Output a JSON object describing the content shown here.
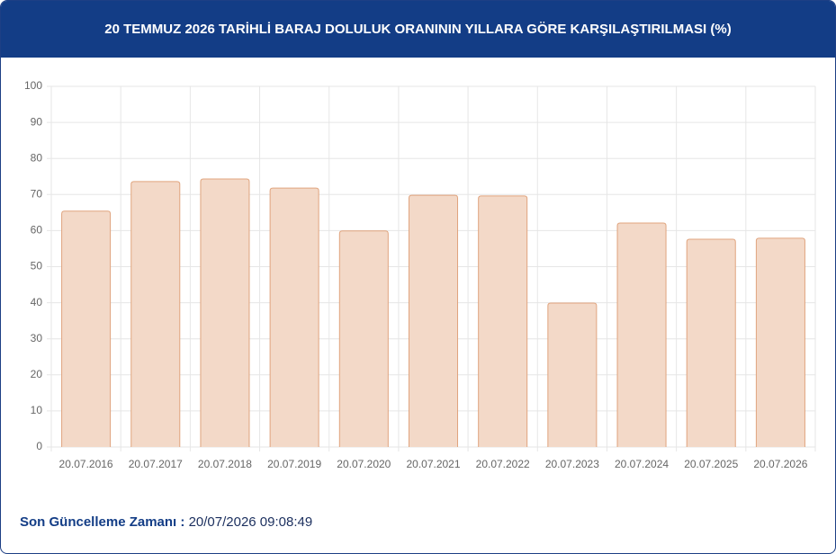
{
  "chart_data": {
    "type": "bar",
    "title": "20 TEMMUZ 2026 TARİHLİ BARAJ DOLULUK ORANININ YILLARA GÖRE KARŞILAŞTIRILMASI (%)",
    "categories": [
      "20.07.2016",
      "20.07.2017",
      "20.07.2018",
      "20.07.2019",
      "20.07.2020",
      "20.07.2021",
      "20.07.2022",
      "20.07.2023",
      "20.07.2024",
      "20.07.2025",
      "20.07.2026"
    ],
    "values": [
      65.4,
      73.6,
      74.3,
      71.8,
      59.9,
      69.8,
      69.6,
      39.9,
      62.1,
      57.6,
      57.9
    ],
    "color": "#f3d9c8",
    "border_color": "#e0a47e",
    "ylim": [
      0,
      100
    ],
    "yticks": [
      0,
      10,
      20,
      30,
      40,
      50,
      60,
      70,
      80,
      90,
      100
    ],
    "grid": true
  },
  "footer": {
    "label": "Son Güncelleme Zamanı :",
    "value": "20/07/2026 09:08:49"
  }
}
